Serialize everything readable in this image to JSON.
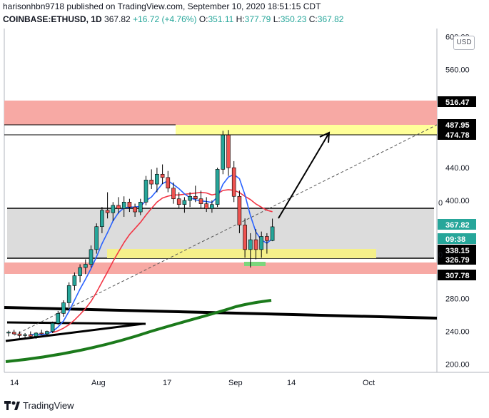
{
  "header": {
    "line1": "harisonhbn9718 published on TradingView.com, September 10, 2020 18:51:15 CDT",
    "symbol": "COINBASE:ETHUSD, 1D",
    "last": "367.82",
    "change": "+16.72 (+4.76%)",
    "o_label": "O:",
    "o": "351.11",
    "h_label": "H:",
    "h": "377.79",
    "l_label": "L:",
    "l": "350.23",
    "c_label": "C:",
    "c": "367.82"
  },
  "currency_button": "USD",
  "price_axis": [
    "600.00",
    "560.00",
    "440.00",
    "400.00",
    "280.00",
    "240.00",
    "200.00"
  ],
  "price_tags": [
    {
      "label": "516.47",
      "bg": "#000000"
    },
    {
      "label": "487.95",
      "bg": "#000000"
    },
    {
      "label": "474.78",
      "bg": "#000000"
    },
    {
      "label": "367.82",
      "bg": "#26a69a"
    },
    {
      "label": "09:38",
      "bg": "#26a69a"
    },
    {
      "label": "338.15",
      "bg": "#000000"
    },
    {
      "label": "326.79",
      "bg": "#000000"
    },
    {
      "label": "307.78",
      "bg": "#000000"
    }
  ],
  "level_zero_labels": [
    "0",
    "0"
  ],
  "time_axis": [
    "14",
    "Aug",
    "17",
    "Sep",
    "14",
    "Oct"
  ],
  "footer": {
    "brand": "TradingView"
  },
  "colors": {
    "bull": "#26a69a",
    "bear": "#ef5350",
    "ma_blue": "#2962ff",
    "ma_red": "#f23645",
    "ma_green": "#1b7a1b",
    "zone_red": "#f7a9a4",
    "zone_yellow": "#ffff99",
    "zone_grey": "#dcdcdc"
  },
  "chart_data": {
    "type": "candlestick",
    "ylim": [
      190,
      610
    ],
    "ohlc": [
      [
        238,
        241,
        234,
        239
      ],
      [
        239,
        242,
        236,
        237
      ],
      [
        237,
        240,
        232,
        235
      ],
      [
        235,
        238,
        231,
        236
      ],
      [
        236,
        240,
        233,
        234
      ],
      [
        234,
        239,
        231,
        238
      ],
      [
        238,
        242,
        236,
        237
      ],
      [
        237,
        241,
        235,
        240
      ],
      [
        240,
        252,
        238,
        250
      ],
      [
        250,
        265,
        248,
        262
      ],
      [
        262,
        278,
        258,
        275
      ],
      [
        275,
        300,
        270,
        296
      ],
      [
        296,
        312,
        290,
        308
      ],
      [
        308,
        322,
        300,
        318
      ],
      [
        318,
        328,
        310,
        322
      ],
      [
        322,
        345,
        318,
        340
      ],
      [
        340,
        372,
        335,
        368
      ],
      [
        368,
        392,
        360,
        388
      ],
      [
        388,
        410,
        378,
        385
      ],
      [
        385,
        398,
        375,
        394
      ],
      [
        394,
        404,
        384,
        390
      ],
      [
        390,
        405,
        380,
        398
      ],
      [
        398,
        402,
        386,
        392
      ],
      [
        392,
        396,
        380,
        386
      ],
      [
        386,
        402,
        382,
        398
      ],
      [
        398,
        430,
        394,
        425
      ],
      [
        425,
        438,
        414,
        420
      ],
      [
        420,
        440,
        410,
        432
      ],
      [
        432,
        444,
        420,
        428
      ],
      [
        428,
        436,
        410,
        415
      ],
      [
        415,
        422,
        396,
        402
      ],
      [
        402,
        410,
        390,
        395
      ],
      [
        395,
        404,
        385,
        400
      ],
      [
        400,
        410,
        392,
        405
      ],
      [
        405,
        418,
        398,
        402
      ],
      [
        402,
        412,
        390,
        396
      ],
      [
        396,
        404,
        386,
        390
      ],
      [
        390,
        400,
        385,
        395
      ],
      [
        395,
        440,
        392,
        438
      ],
      [
        438,
        485,
        432,
        480
      ],
      [
        480,
        486,
        430,
        440
      ],
      [
        440,
        448,
        398,
        405
      ],
      [
        405,
        412,
        360,
        370
      ],
      [
        370,
        378,
        330,
        340
      ],
      [
        340,
        360,
        318,
        352
      ],
      [
        352,
        365,
        328,
        340
      ],
      [
        340,
        362,
        330,
        356
      ],
      [
        356,
        360,
        335,
        351
      ],
      [
        351,
        377.79,
        350.23,
        367.82
      ]
    ]
  }
}
